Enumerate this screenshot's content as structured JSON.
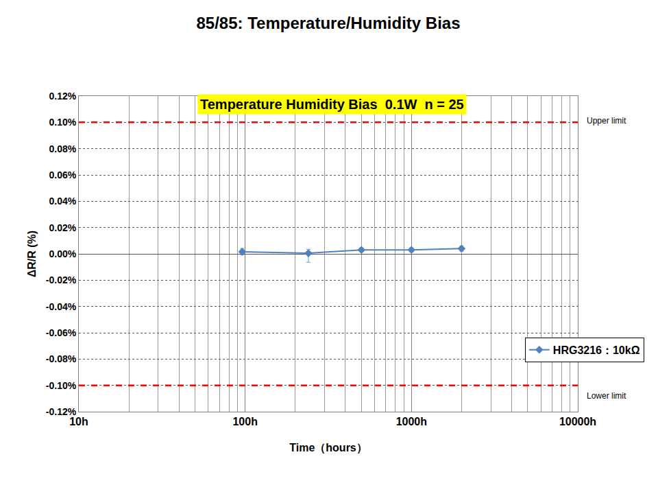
{
  "chart_data": {
    "type": "line",
    "title": "85/85: Temperature/Humidity Bias",
    "annotation": "Temperature Humidity Bias  0.1W  n = 25",
    "x_label": "Time（hours）",
    "y_label": "ΔR/R (%)",
    "log": "x",
    "grid": true,
    "legend": "right",
    "marker": "diamond",
    "x": [
      96,
      240,
      500,
      1000,
      2000
    ],
    "series": [
      {
        "name": "HRG3216：10kΩ",
        "color": "#4f81bd",
        "values": [
          0.0016,
          0.0005,
          0.003,
          0.003,
          0.004
        ],
        "error_plus": [
          0.0025,
          0.003,
          0.0015,
          0.0015,
          0.002
        ],
        "error_minus": [
          0.0025,
          0.007,
          0.0015,
          0.0015,
          0.002
        ]
      }
    ],
    "limits": [
      {
        "value": 0.1,
        "label": "Upper limit",
        "color": "#ff0000"
      },
      {
        "value": -0.1,
        "label": "Lower limit",
        "color": "#ff0000"
      }
    ],
    "xlim": [
      10,
      10000
    ],
    "xticks": [
      {
        "value": 10,
        "label": "10h"
      },
      {
        "value": 100,
        "label": "100h"
      },
      {
        "value": 1000,
        "label": "1000h"
      },
      {
        "value": 10000,
        "label": "10000h"
      }
    ],
    "ylim": [
      -0.12,
      0.12
    ],
    "yticks": [
      {
        "value": -0.12,
        "label": "-0.12%"
      },
      {
        "value": -0.1,
        "label": "-0.10%"
      },
      {
        "value": -0.08,
        "label": "-0.08%"
      },
      {
        "value": -0.06,
        "label": "-0.06%"
      },
      {
        "value": -0.04,
        "label": "-0.04%"
      },
      {
        "value": -0.02,
        "label": "-0.02%"
      },
      {
        "value": 0,
        "label": "0.00%"
      },
      {
        "value": 0.02,
        "label": "0.02%"
      },
      {
        "value": 0.04,
        "label": "0.04%"
      },
      {
        "value": 0.06,
        "label": "0.06%"
      },
      {
        "value": 0.08,
        "label": "0.08%"
      },
      {
        "value": 0.1,
        "label": "0.10%"
      },
      {
        "value": 0.12,
        "label": "0.12%"
      }
    ]
  }
}
